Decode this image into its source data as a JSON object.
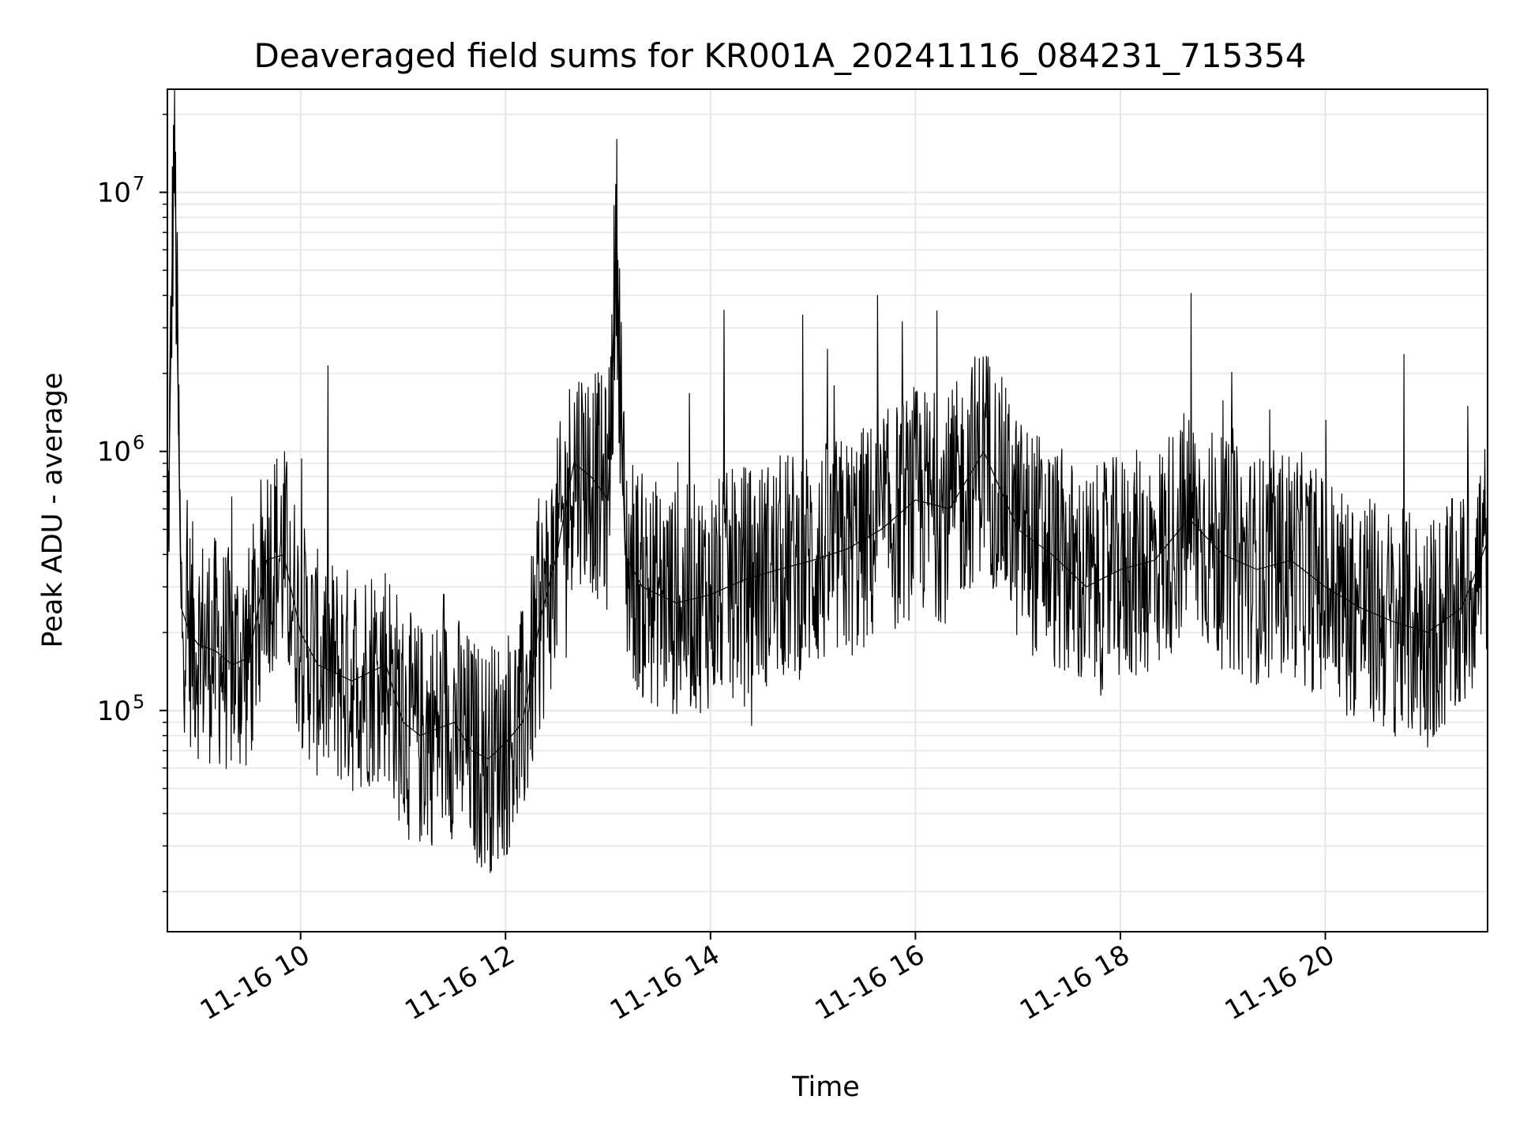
{
  "chart_data": {
    "type": "line",
    "title": "Deaveraged field sums for KR001A_20241116_084231_715354",
    "xlabel": "Time",
    "ylabel": "Peak ADU - average",
    "yscale": "log",
    "ylim": [
      14000,
      25000000
    ],
    "xlim": [
      "2024-11-16T08:42",
      "2024-11-16T21:35"
    ],
    "grid": true,
    "line_color": "#000000",
    "grid_color": "#e6e6e6",
    "x_ticks": [
      {
        "value": "2024-11-16T10:00",
        "label": "11-16 10"
      },
      {
        "value": "2024-11-16T12:00",
        "label": "11-16 12"
      },
      {
        "value": "2024-11-16T14:00",
        "label": "11-16 14"
      },
      {
        "value": "2024-11-16T16:00",
        "label": "11-16 16"
      },
      {
        "value": "2024-11-16T18:00",
        "label": "11-16 18"
      },
      {
        "value": "2024-11-16T20:00",
        "label": "11-16 20"
      }
    ],
    "y_ticks": [
      {
        "value": 100000,
        "base": "10",
        "exp": "5"
      },
      {
        "value": 1000000,
        "base": "10",
        "exp": "6"
      },
      {
        "value": 10000000,
        "base": "10",
        "exp": "7"
      }
    ],
    "series": [
      {
        "x": [
          "2024-11-16T08:42",
          "2024-11-16T08:46",
          "2024-11-16T08:50",
          "2024-11-16T08:55",
          "2024-11-16T09:00",
          "2024-11-16T09:10",
          "2024-11-16T09:20",
          "2024-11-16T09:30",
          "2024-11-16T09:40",
          "2024-11-16T09:50",
          "2024-11-16T10:00",
          "2024-11-16T10:10",
          "2024-11-16T10:20",
          "2024-11-16T10:30",
          "2024-11-16T10:40",
          "2024-11-16T10:50",
          "2024-11-16T11:00",
          "2024-11-16T11:10",
          "2024-11-16T11:20",
          "2024-11-16T11:30",
          "2024-11-16T11:40",
          "2024-11-16T11:50",
          "2024-11-16T12:00",
          "2024-11-16T12:10",
          "2024-11-16T12:20",
          "2024-11-16T12:30",
          "2024-11-16T12:40",
          "2024-11-16T12:50",
          "2024-11-16T13:00",
          "2024-11-16T13:05",
          "2024-11-16T13:10",
          "2024-11-16T13:20",
          "2024-11-16T13:40",
          "2024-11-16T14:00",
          "2024-11-16T14:20",
          "2024-11-16T14:40",
          "2024-11-16T15:00",
          "2024-11-16T15:20",
          "2024-11-16T15:40",
          "2024-11-16T16:00",
          "2024-11-16T16:20",
          "2024-11-16T16:40",
          "2024-11-16T17:00",
          "2024-11-16T17:20",
          "2024-11-16T17:40",
          "2024-11-16T18:00",
          "2024-11-16T18:20",
          "2024-11-16T18:40",
          "2024-11-16T19:00",
          "2024-11-16T19:20",
          "2024-11-16T19:40",
          "2024-11-16T20:00",
          "2024-11-16T20:20",
          "2024-11-16T20:40",
          "2024-11-16T21:00",
          "2024-11-16T21:20",
          "2024-11-16T21:35"
        ],
        "y": [
          300000,
          18000000,
          250000,
          200000,
          180000,
          170000,
          150000,
          160000,
          380000,
          400000,
          200000,
          150000,
          140000,
          130000,
          140000,
          150000,
          90000,
          80000,
          85000,
          90000,
          70000,
          65000,
          75000,
          90000,
          220000,
          400000,
          900000,
          800000,
          650000,
          6800000,
          400000,
          300000,
          260000,
          280000,
          320000,
          350000,
          380000,
          420000,
          500000,
          650000,
          600000,
          1000000,
          500000,
          400000,
          300000,
          350000,
          380000,
          550000,
          400000,
          350000,
          380000,
          300000,
          250000,
          220000,
          200000,
          250000,
          450000
        ]
      }
    ]
  }
}
